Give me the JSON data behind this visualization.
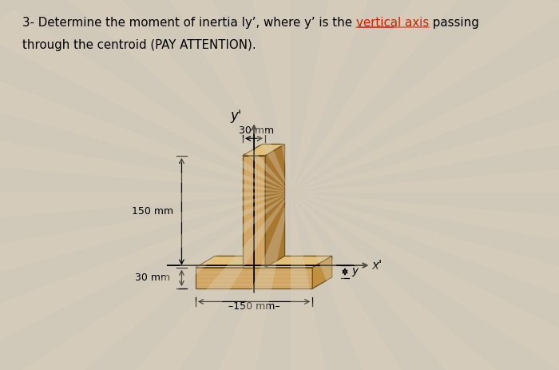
{
  "bg_color": "#d0c8b8",
  "wood_face_color": "#d4aa6a",
  "wood_dark_color": "#a87830",
  "wood_shadow_color": "#b89050",
  "wood_top_color": "#e0c07a",
  "wood_right_color": "#c09040",
  "dim_30_top": "30 mm",
  "dim_150_height": "150 mm",
  "dim_30_base": "30 mm",
  "dim_150_width": "–150 mm–",
  "label_y_prime": "y'",
  "label_x_prime": "x'",
  "label_y_bar": "$\\bar{y}$",
  "title_part1": "3- Determine the moment of inertia Iy’, where y’ is the ",
  "title_red": "vertical axis",
  "title_part2": " passing",
  "title_line2": "through the centroid (PAY ATTENTION)."
}
